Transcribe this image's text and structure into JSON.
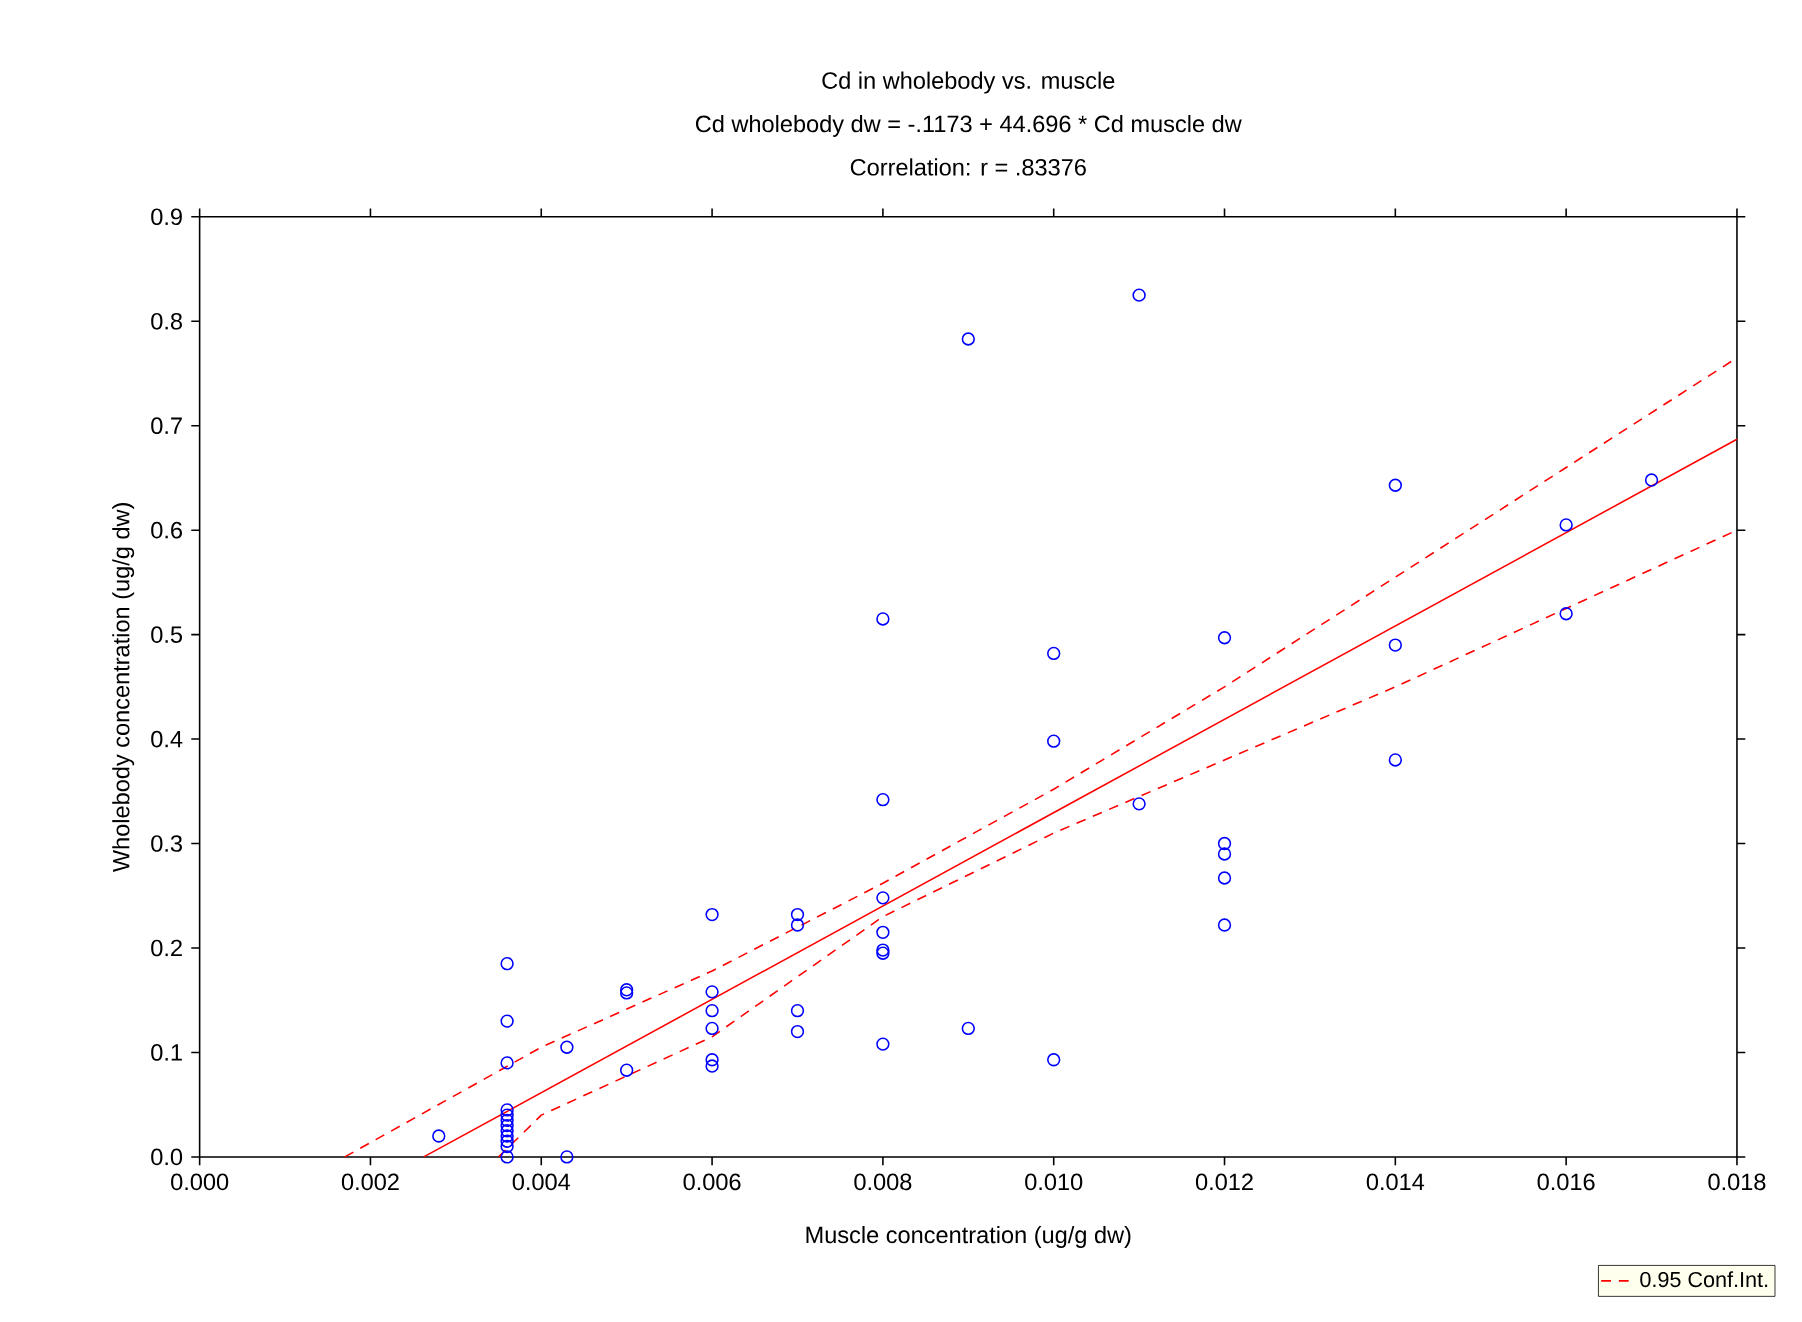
{
  "chart_data": {
    "type": "scatter",
    "title": "Cd in wholebody vs. muscle",
    "subtitle": "Cd wholebody dw = -.1173 + 44.696 * Cd muscle dw",
    "annotations": [
      "Correlation: r = .83376"
    ],
    "xlabel": "Muscle concentration (ug/g dw)",
    "ylabel": "Wholebody concentration (ug/g dw)",
    "xlim": [
      0,
      0.018
    ],
    "ylim": [
      0,
      0.9
    ],
    "xticks": [
      {
        "value": 0,
        "label": "0.000"
      },
      {
        "value": 0.002,
        "label": "0.002"
      },
      {
        "value": 0.004,
        "label": "0.004"
      },
      {
        "value": 0.006,
        "label": "0.006"
      },
      {
        "value": 0.008,
        "label": "0.008"
      },
      {
        "value": 0.01,
        "label": "0.010"
      },
      {
        "value": 0.012,
        "label": "0.012"
      },
      {
        "value": 0.014,
        "label": "0.014"
      },
      {
        "value": 0.016,
        "label": "0.016"
      },
      {
        "value": 0.018,
        "label": "0.018"
      }
    ],
    "yticks": [
      {
        "value": 0,
        "label": "0.0"
      },
      0.1,
      0.2,
      0.3,
      0.4,
      0.5,
      0.6,
      0.7,
      0.8,
      0.9
    ],
    "grid": false,
    "legend": "bottom right",
    "series": [
      {
        "color": "#0000ff",
        "marker": "circle",
        "x": [
          0.0028,
          0.0036,
          0.0036,
          0.0036,
          0.0036,
          0.0036,
          0.0036,
          0.0036,
          0.0036,
          0.0036,
          0.0036,
          0.0036,
          0.0036,
          0.0043,
          0.0043,
          0.005,
          0.005,
          0.005,
          0.006,
          0.006,
          0.006,
          0.006,
          0.006,
          0.006,
          0.007,
          0.007,
          0.007,
          0.007,
          0.008,
          0.008,
          0.008,
          0.008,
          0.008,
          0.008,
          0.008,
          0.009,
          0.009,
          0.01,
          0.01,
          0.01,
          0.011,
          0.011,
          0.012,
          0.012,
          0.012,
          0.012,
          0.012,
          0.014,
          0.014,
          0.014,
          0.016,
          0.016,
          0.017
        ],
        "values": [
          0.02,
          0.185,
          0.13,
          0.09,
          0.045,
          0.04,
          0.035,
          0.03,
          0.025,
          0.02,
          0.015,
          0.01,
          0.0,
          0.105,
          0.0,
          0.16,
          0.157,
          0.083,
          0.232,
          0.158,
          0.14,
          0.123,
          0.093,
          0.087,
          0.232,
          0.222,
          0.14,
          0.12,
          0.515,
          0.342,
          0.248,
          0.215,
          0.198,
          0.195,
          0.108,
          0.783,
          0.123,
          0.482,
          0.398,
          0.093,
          0.825,
          0.338,
          0.497,
          0.3,
          0.29,
          0.267,
          0.222,
          0.643,
          0.49,
          0.38,
          0.605,
          0.52,
          0.648
        ]
      },
      {
        "type": "line",
        "color": "#ff0000",
        "marker": "none",
        "line_style": "solid",
        "x": [
          0.002624,
          0.018
        ],
        "values": [
          0,
          0.687
        ]
      },
      {
        "type": "line",
        "name": "0.95 Conf.Int.",
        "color": "#ff0000",
        "marker": "none",
        "line_style": "dashed",
        "x": [
          0.0017,
          0.004,
          0.006,
          0.008,
          0.01,
          0.012,
          0.014,
          0.016,
          0.018
        ],
        "values": [
          0,
          0.105,
          0.178,
          0.262,
          0.352,
          0.45,
          0.555,
          0.66,
          0.765
        ]
      },
      {
        "type": "line",
        "color": "#ff0000",
        "marker": "none",
        "line_style": "dashed",
        "x": [
          0.0035,
          0.004,
          0.006,
          0.008,
          0.01,
          0.012,
          0.014,
          0.016,
          0.018
        ],
        "values": [
          0,
          0.04,
          0.115,
          0.23,
          0.31,
          0.38,
          0.45,
          0.525,
          0.6
        ]
      }
    ]
  }
}
